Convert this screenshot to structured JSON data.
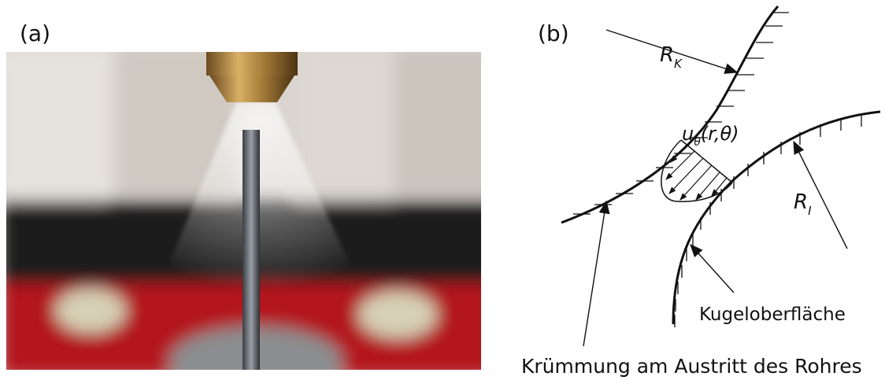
{
  "panels": {
    "a": {
      "label": "(a)"
    },
    "b": {
      "label": "(b)",
      "outer_radius": {
        "main": "R",
        "sub": "K"
      },
      "velocity": {
        "main": "u",
        "sub": "θ",
        "args": "(r,θ)"
      },
      "inner_radius": {
        "main": "R",
        "sub": "I"
      },
      "sphere_label": "Kugeloberfläche",
      "curvature_label": "Krümmung am Austritt des Rohres"
    }
  }
}
